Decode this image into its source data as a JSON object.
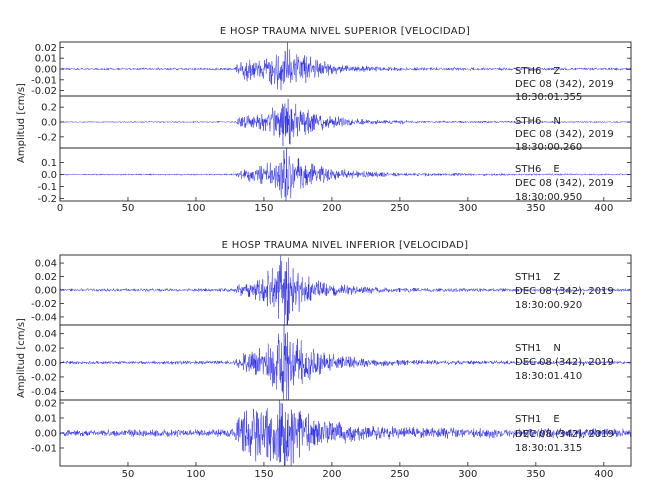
{
  "chart_data": [
    {
      "type": "line",
      "title": "E HOSP TRAUMA NIVEL SUPERIOR [VELOCIDAD]",
      "ylabel": "Amplitud [cm/s]",
      "xlabel": "",
      "xlim": [
        0,
        420
      ],
      "x_ticks": [
        "0",
        "50",
        "100",
        "150",
        "200",
        "250",
        "300",
        "350",
        "400"
      ],
      "line_color": "#1f1fe6",
      "traces": [
        {
          "station": "STH6",
          "component": "Z",
          "date": "DEC 08 (342), 2019",
          "time": "18:30:01.355",
          "ylim": [
            -0.025,
            0.025
          ],
          "y_ticks": [
            "0.02",
            "0.01",
            "0.00",
            "-0.01",
            "-0.02"
          ],
          "envelope": [
            [
              0,
              0.0007
            ],
            [
              128,
              0.0009
            ],
            [
              133,
              0.006
            ],
            [
              138,
              0.009
            ],
            [
              143,
              0.007
            ],
            [
              148,
              0.006
            ],
            [
              152,
              0.008
            ],
            [
              157,
              0.011
            ],
            [
              162,
              0.015
            ],
            [
              166,
              0.02
            ],
            [
              170,
              0.014
            ],
            [
              175,
              0.011
            ],
            [
              182,
              0.009
            ],
            [
              190,
              0.006
            ],
            [
              200,
              0.004
            ],
            [
              215,
              0.0025
            ],
            [
              240,
              0.0015
            ],
            [
              280,
              0.0011
            ],
            [
              340,
              0.0009
            ],
            [
              420,
              0.0008
            ]
          ]
        },
        {
          "station": "STH6",
          "component": "N",
          "date": "DEC 08 (342), 2019",
          "time": "18:30:00.260",
          "ylim": [
            -0.35,
            0.35
          ],
          "y_ticks": [
            "0.2",
            "0.0",
            "-0.2"
          ],
          "envelope": [
            [
              0,
              0.006
            ],
            [
              128,
              0.008
            ],
            [
              133,
              0.05
            ],
            [
              140,
              0.07
            ],
            [
              148,
              0.08
            ],
            [
              155,
              0.12
            ],
            [
              162,
              0.22
            ],
            [
              166,
              0.28
            ],
            [
              171,
              0.2
            ],
            [
              178,
              0.14
            ],
            [
              188,
              0.09
            ],
            [
              200,
              0.06
            ],
            [
              215,
              0.035
            ],
            [
              240,
              0.02
            ],
            [
              280,
              0.012
            ],
            [
              340,
              0.009
            ],
            [
              420,
              0.007
            ]
          ]
        },
        {
          "station": "STH6",
          "component": "E",
          "date": "DEC 08 (342), 2019",
          "time": "18:30:00.950",
          "ylim": [
            -0.22,
            0.22
          ],
          "y_ticks": [
            "0.1",
            "0.0",
            "-0.1",
            "-0.2"
          ],
          "envelope": [
            [
              0,
              0.004
            ],
            [
              128,
              0.005
            ],
            [
              133,
              0.03
            ],
            [
              140,
              0.045
            ],
            [
              150,
              0.06
            ],
            [
              158,
              0.1
            ],
            [
              163,
              0.16
            ],
            [
              166,
              0.19
            ],
            [
              170,
              0.14
            ],
            [
              178,
              0.1
            ],
            [
              188,
              0.06
            ],
            [
              200,
              0.04
            ],
            [
              215,
              0.025
            ],
            [
              240,
              0.014
            ],
            [
              280,
              0.009
            ],
            [
              340,
              0.006
            ],
            [
              420,
              0.005
            ]
          ]
        }
      ]
    },
    {
      "type": "line",
      "title": "E HOSP TRAUMA NIVEL INFERIOR [VELOCIDAD]",
      "ylabel": "Amplitud [cm/s]",
      "xlabel": "",
      "xlim": [
        0,
        420
      ],
      "x_ticks": [
        "50",
        "100",
        "150",
        "200",
        "250",
        "300",
        "350",
        "400"
      ],
      "line_color": "#1f1fe6",
      "traces": [
        {
          "station": "STH1",
          "component": "Z",
          "date": "DEC 08 (342), 2019",
          "time": "18:30:00.920",
          "ylim": [
            -0.052,
            0.052
          ],
          "y_ticks": [
            "0.04",
            "0.02",
            "0.00",
            "-0.02",
            "-0.04"
          ],
          "envelope": [
            [
              0,
              0.0015
            ],
            [
              128,
              0.002
            ],
            [
              133,
              0.008
            ],
            [
              140,
              0.01
            ],
            [
              150,
              0.016
            ],
            [
              157,
              0.025
            ],
            [
              162,
              0.038
            ],
            [
              166,
              0.045
            ],
            [
              170,
              0.033
            ],
            [
              177,
              0.022
            ],
            [
              187,
              0.012
            ],
            [
              200,
              0.008
            ],
            [
              220,
              0.004
            ],
            [
              250,
              0.0025
            ],
            [
              300,
              0.002
            ],
            [
              420,
              0.0015
            ]
          ]
        },
        {
          "station": "STH1",
          "component": "N",
          "date": "DEC 08 (342), 2019",
          "time": "18:30:01.410",
          "ylim": [
            -0.052,
            0.052
          ],
          "y_ticks": [
            "0.04",
            "0.02",
            "0.00",
            "-0.02",
            "-0.04"
          ],
          "envelope": [
            [
              0,
              0.0015
            ],
            [
              128,
              0.002
            ],
            [
              133,
              0.008
            ],
            [
              140,
              0.012
            ],
            [
              150,
              0.018
            ],
            [
              157,
              0.025
            ],
            [
              162,
              0.035
            ],
            [
              166,
              0.048
            ],
            [
              170,
              0.035
            ],
            [
              177,
              0.024
            ],
            [
              187,
              0.014
            ],
            [
              200,
              0.009
            ],
            [
              220,
              0.005
            ],
            [
              250,
              0.003
            ],
            [
              300,
              0.002
            ],
            [
              420,
              0.0015
            ]
          ]
        },
        {
          "station": "STH1",
          "component": "E",
          "date": "DEC 08 (342), 2019",
          "time": "18:30:01.315",
          "ylim": [
            -0.022,
            0.022
          ],
          "y_ticks": [
            "0.02",
            "0.01",
            "0.00",
            "-0.01"
          ],
          "envelope": [
            [
              0,
              0.0015
            ],
            [
              128,
              0.002
            ],
            [
              133,
              0.011
            ],
            [
              140,
              0.014
            ],
            [
              150,
              0.012
            ],
            [
              157,
              0.015
            ],
            [
              162,
              0.018
            ],
            [
              166,
              0.02
            ],
            [
              170,
              0.016
            ],
            [
              177,
              0.012
            ],
            [
              187,
              0.008
            ],
            [
              200,
              0.006
            ],
            [
              220,
              0.004
            ],
            [
              250,
              0.003
            ],
            [
              300,
              0.0025
            ],
            [
              420,
              0.0022
            ]
          ]
        }
      ]
    }
  ]
}
